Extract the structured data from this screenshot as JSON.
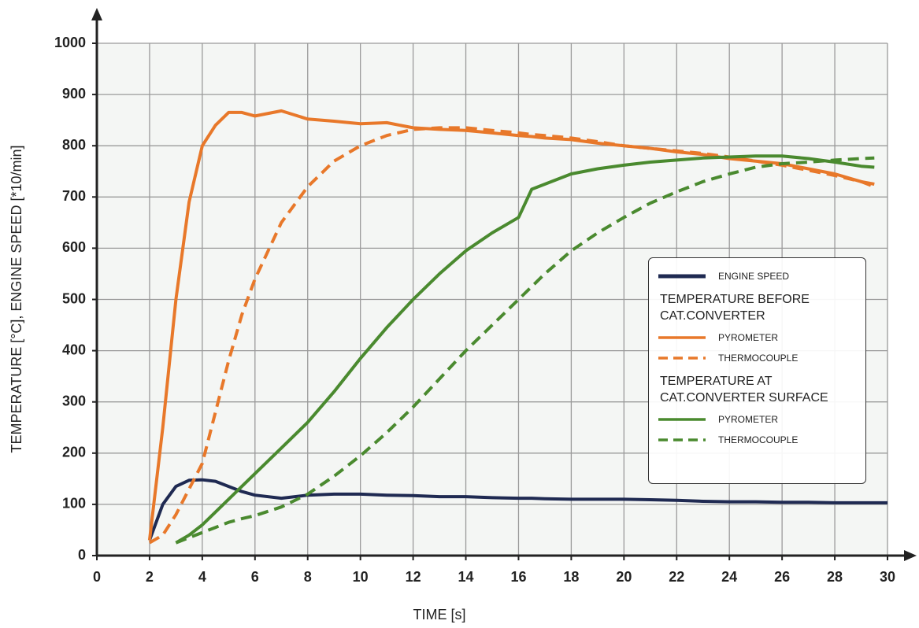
{
  "chart_data": {
    "type": "line",
    "x_label": "TIME [s]",
    "y_label": "TEMPERATURE [°C], ENGINE SPEED [*10/min]",
    "x": [
      2,
      2.5,
      3,
      3.5,
      4,
      4.5,
      5,
      5.5,
      6,
      7,
      8,
      9,
      10,
      11,
      12,
      13,
      14,
      15,
      16,
      16.5,
      17,
      18,
      19,
      20,
      21,
      22,
      23,
      24,
      25,
      26,
      27,
      28,
      29,
      29.5,
      30
    ],
    "series": [
      {
        "name": "ENGINE SPEED",
        "color": "#1f2a52",
        "dashed": false,
        "values": [
          30,
          100,
          135,
          147,
          148,
          145,
          135,
          125,
          118,
          112,
          118,
          120,
          120,
          118,
          117,
          115,
          115,
          113,
          112,
          112,
          111,
          110,
          110,
          110,
          109,
          108,
          106,
          105,
          105,
          104,
          104,
          103,
          103,
          103,
          103
        ]
      },
      {
        "name": "PYROMETER",
        "heading": "TEMPERATURE BEFORE CAT.CONVERTER",
        "color": "#e8782a",
        "dashed": false,
        "values": [
          30,
          250,
          500,
          690,
          800,
          840,
          865,
          865,
          858,
          868,
          852,
          848,
          843,
          845,
          835,
          832,
          830,
          825,
          820,
          818,
          815,
          812,
          805,
          800,
          795,
          788,
          783,
          775,
          770,
          765,
          755,
          745,
          730,
          725,
          null
        ]
      },
      {
        "name": "THERMOCOUPLE",
        "color": "#e8782a",
        "dashed": true,
        "values": [
          25,
          40,
          80,
          130,
          180,
          280,
          380,
          470,
          540,
          650,
          720,
          770,
          800,
          820,
          832,
          835,
          835,
          830,
          825,
          822,
          820,
          815,
          808,
          800,
          795,
          790,
          785,
          778,
          770,
          762,
          752,
          742,
          730,
          720,
          null
        ]
      },
      {
        "name": "PYROMETER",
        "heading": "TEMPERATURE AT CAT.CONVERTER SURFACE",
        "color": "#4a8a2f",
        "dashed": false,
        "values": [
          null,
          null,
          25,
          40,
          60,
          85,
          110,
          135,
          160,
          210,
          260,
          320,
          385,
          445,
          500,
          550,
          595,
          630,
          660,
          715,
          725,
          745,
          755,
          762,
          768,
          772,
          776,
          778,
          780,
          780,
          775,
          768,
          760,
          758,
          null
        ]
      },
      {
        "name": "THERMOCOUPLE",
        "color": "#4a8a2f",
        "dashed": true,
        "values": [
          null,
          null,
          25,
          35,
          45,
          55,
          65,
          72,
          78,
          95,
          120,
          155,
          195,
          240,
          290,
          345,
          400,
          450,
          500,
          525,
          550,
          595,
          630,
          660,
          688,
          710,
          730,
          745,
          758,
          765,
          768,
          772,
          775,
          776,
          null
        ]
      }
    ],
    "xlim": [
      0,
      30
    ],
    "xticks": [
      0,
      2,
      4,
      6,
      8,
      10,
      12,
      14,
      16,
      18,
      20,
      22,
      24,
      26,
      28,
      30
    ],
    "ylim": [
      0,
      1000
    ],
    "yticks": [
      0,
      100,
      200,
      300,
      400,
      500,
      600,
      700,
      800,
      900,
      1000
    ],
    "grid": true,
    "legend": "right"
  }
}
